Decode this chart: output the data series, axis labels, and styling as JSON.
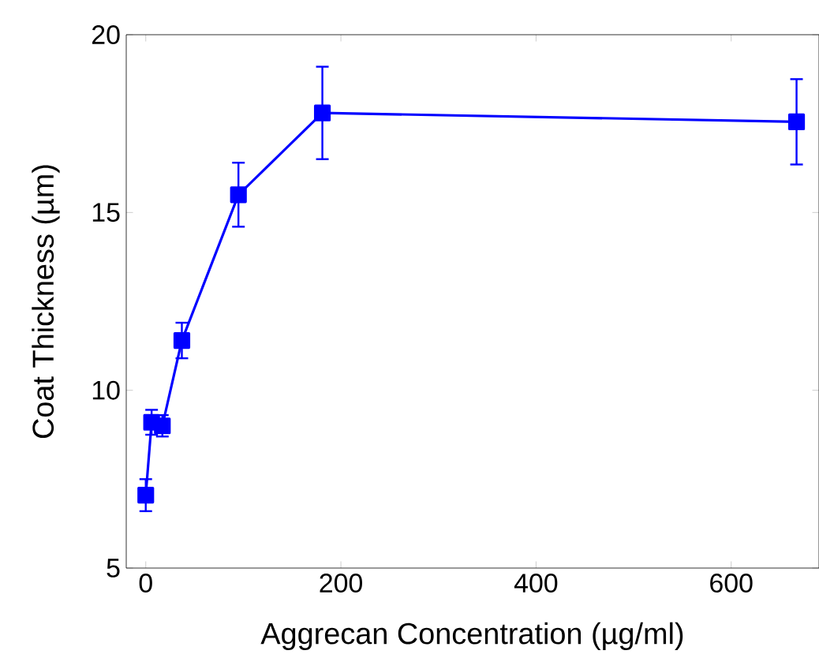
{
  "chart_data": {
    "type": "line",
    "xlabel": "Aggrecan Concentration (µg/ml)",
    "ylabel": "Coat Thickness (µm)",
    "x": [
      0,
      6,
      17,
      37,
      95,
      181,
      667
    ],
    "series": [
      {
        "color": "#0000ff",
        "values": [
          7.05,
          9.1,
          9.0,
          11.4,
          15.5,
          17.8,
          17.55
        ],
        "errors": [
          0.45,
          0.35,
          0.3,
          0.5,
          0.9,
          1.3,
          1.2
        ]
      }
    ],
    "xlim": [
      -20,
      690
    ],
    "ylim": [
      5,
      20
    ],
    "xticks": [
      0,
      200,
      400,
      600
    ],
    "yticks": [
      5,
      10,
      15,
      20
    ],
    "marker": "square",
    "line_style": "solid"
  }
}
